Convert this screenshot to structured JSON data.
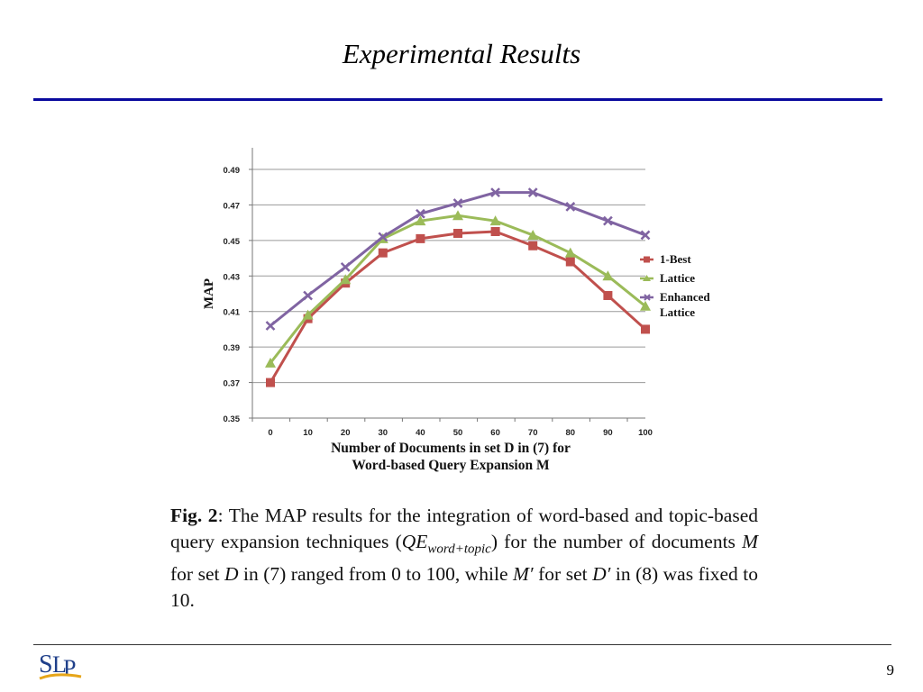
{
  "slide": {
    "title": "Experimental Results",
    "page_number": "9"
  },
  "caption": {
    "fig_label": "Fig. 2",
    "text_1": ": The MAP results for the integration of word-based and topic-based query expansion techniques (",
    "qe_main": "QE",
    "qe_sub": "word+topic",
    "text_2": ") for the number of documents ",
    "var_m": "M",
    "text_3": " for set ",
    "var_d": "D",
    "text_4": " in (7) ranged from 0 to 100, while ",
    "var_m_prime": "M′",
    "text_5": " for set ",
    "var_d_prime": "D′",
    "text_6": " in (8) was fixed to 10."
  },
  "logo": {
    "text": "SLP"
  },
  "colors": {
    "title_rule": "#0a0a9e",
    "one_best": "#c0504d",
    "lattice": "#9bbb59",
    "enhanced": "#8064a2"
  },
  "chart_data": {
    "type": "line",
    "xlabel_lines": [
      "Number of  Documents in set D in (7) for",
      "Word-based Query Expansion M"
    ],
    "ylabel": "MAP",
    "x": [
      0,
      10,
      20,
      30,
      40,
      50,
      60,
      70,
      80,
      90,
      100
    ],
    "ylim": [
      0.35,
      0.49
    ],
    "yticks": [
      "0.35",
      "0.37",
      "0.39",
      "0.41",
      "0.43",
      "0.45",
      "0.47",
      "0.49"
    ],
    "xticks": [
      "0",
      "10",
      "20",
      "30",
      "40",
      "50",
      "60",
      "70",
      "80",
      "90",
      "100"
    ],
    "grid": true,
    "legend_position": "right",
    "series": [
      {
        "name": "1-Best",
        "marker": "square",
        "color": "#c0504d",
        "values": [
          0.37,
          0.406,
          0.426,
          0.443,
          0.451,
          0.454,
          0.455,
          0.447,
          0.438,
          0.419,
          0.4
        ]
      },
      {
        "name": "Lattice",
        "marker": "triangle",
        "color": "#9bbb59",
        "values": [
          0.381,
          0.408,
          0.428,
          0.451,
          0.461,
          0.464,
          0.461,
          0.453,
          0.443,
          0.43,
          0.413
        ]
      },
      {
        "name": "Enhanced\nLattice",
        "marker": "x",
        "color": "#8064a2",
        "values": [
          0.402,
          0.419,
          0.435,
          0.452,
          0.465,
          0.471,
          0.477,
          0.477,
          0.469,
          0.461,
          0.453
        ]
      }
    ]
  }
}
